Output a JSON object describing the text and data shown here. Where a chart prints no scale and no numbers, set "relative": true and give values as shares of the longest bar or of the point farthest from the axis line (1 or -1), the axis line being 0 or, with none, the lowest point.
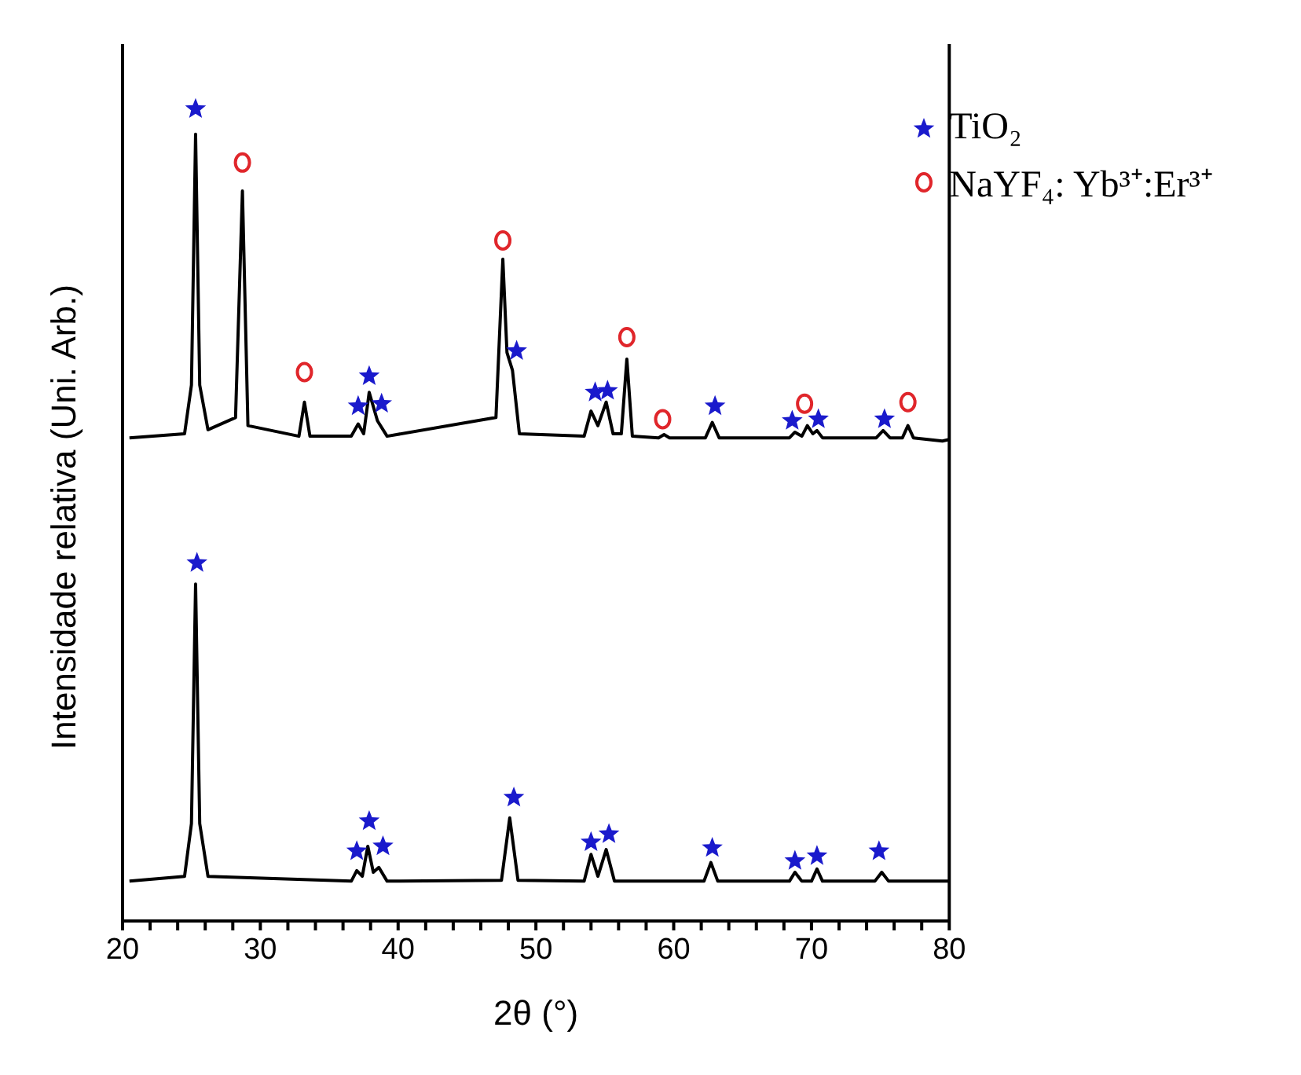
{
  "chart_data": {
    "type": "line",
    "relative": true,
    "xlabel": "2θ (°)",
    "ylabel": "Intensidade relativa (Uni. Arb.)",
    "xlim": [
      20,
      80
    ],
    "xticks": [
      20,
      {
        "value": 22,
        "label": null
      },
      {
        "value": 24,
        "label": null
      },
      {
        "value": 26,
        "label": null
      },
      {
        "value": 28,
        "label": null
      },
      30,
      {
        "value": 32,
        "label": null
      },
      {
        "value": 34,
        "label": null
      },
      {
        "value": 36,
        "label": null
      },
      {
        "value": 38,
        "label": null
      },
      40,
      {
        "value": 42,
        "label": null
      },
      {
        "value": 44,
        "label": null
      },
      {
        "value": 46,
        "label": null
      },
      {
        "value": 48,
        "label": null
      },
      50,
      {
        "value": 52,
        "label": null
      },
      {
        "value": 54,
        "label": null
      },
      {
        "value": 56,
        "label": null
      },
      {
        "value": 58,
        "label": null
      },
      60,
      {
        "value": 62,
        "label": null
      },
      {
        "value": 64,
        "label": null
      },
      {
        "value": 66,
        "label": null
      },
      {
        "value": 68,
        "label": null
      },
      70,
      {
        "value": 72,
        "label": null
      },
      {
        "value": 74,
        "label": null
      },
      {
        "value": 76,
        "label": null
      },
      {
        "value": 78,
        "label": null
      },
      80
    ],
    "legend": "top right",
    "grid": false,
    "series": [
      {
        "marker": "none",
        "color": "#000000",
        "x": [
          20.5,
          24.5,
          25.0,
          25.3,
          25.6,
          26.2,
          28.2,
          28.7,
          29.1,
          32.8,
          33.2,
          33.6,
          36.6,
          37.1,
          37.5,
          37.9,
          38.5,
          39.2,
          47.1,
          47.6,
          47.9,
          48.3,
          48.8,
          53.5,
          54.0,
          54.5,
          55.1,
          55.6,
          56.2,
          56.6,
          57.0,
          58.9,
          59.3,
          59.7,
          62.3,
          62.8,
          63.3,
          68.4,
          68.8,
          69.3,
          69.7,
          70.1,
          70.4,
          70.8,
          74.7,
          75.2,
          75.7,
          76.6,
          77.0,
          77.4,
          79.5,
          80
        ],
        "values": [
          0.595,
          0.6,
          0.66,
          0.969,
          0.66,
          0.605,
          0.62,
          0.899,
          0.61,
          0.597,
          0.639,
          0.597,
          0.597,
          0.612,
          0.6,
          0.651,
          0.616,
          0.597,
          0.62,
          0.815,
          0.7,
          0.678,
          0.6,
          0.597,
          0.628,
          0.61,
          0.639,
          0.6,
          0.6,
          0.692,
          0.597,
          0.595,
          0.599,
          0.595,
          0.595,
          0.614,
          0.595,
          0.595,
          0.602,
          0.597,
          0.61,
          0.6,
          0.604,
          0.595,
          0.595,
          0.604,
          0.595,
          0.595,
          0.61,
          0.595,
          0.591,
          0.593
        ]
      },
      {
        "marker": "none",
        "color": "#000000",
        "x": [
          20.5,
          24.5,
          25.0,
          25.3,
          25.6,
          26.2,
          36.6,
          37.0,
          37.4,
          37.8,
          38.2,
          38.6,
          39.2,
          47.5,
          48.1,
          48.7,
          53.5,
          54.0,
          54.5,
          55.1,
          55.7,
          62.2,
          62.7,
          63.2,
          68.4,
          68.8,
          69.3,
          70.0,
          70.4,
          70.8,
          74.6,
          75.1,
          75.6,
          80
        ],
        "values": [
          0.049,
          0.055,
          0.12,
          0.415,
          0.12,
          0.055,
          0.049,
          0.062,
          0.055,
          0.092,
          0.06,
          0.066,
          0.049,
          0.05,
          0.127,
          0.05,
          0.049,
          0.082,
          0.055,
          0.088,
          0.049,
          0.049,
          0.072,
          0.049,
          0.049,
          0.06,
          0.049,
          0.049,
          0.064,
          0.049,
          0.049,
          0.06,
          0.049,
          0.049
        ]
      },
      {
        "type": "scatter",
        "name": "TiO₂",
        "marker": "star",
        "color": "#1a1acc",
        "x": [
          25.3,
          37.1,
          37.9,
          38.8,
          48.6,
          54.3,
          55.2,
          63.0,
          68.6,
          70.5,
          75.3,
          25.4,
          37.0,
          37.9,
          38.9,
          48.4,
          54.0,
          55.3,
          62.8,
          68.8,
          70.4,
          74.9
        ],
        "values": [
          1.0,
          0.634,
          0.671,
          0.637,
          0.702,
          0.651,
          0.653,
          0.634,
          0.616,
          0.618,
          0.618,
          0.441,
          0.086,
          0.123,
          0.092,
          0.152,
          0.097,
          0.107,
          0.09,
          0.074,
          0.08,
          0.086
        ]
      },
      {
        "type": "scatter",
        "name": "NaYF₄: Yb³⁺:Er³⁺",
        "marker": "circle",
        "color": "#e0262b",
        "x": [
          28.7,
          33.2,
          47.6,
          56.6,
          59.2,
          69.5,
          77.0
        ],
        "values": [
          0.934,
          0.676,
          0.838,
          0.719,
          0.618,
          0.637,
          0.639
        ]
      }
    ]
  }
}
